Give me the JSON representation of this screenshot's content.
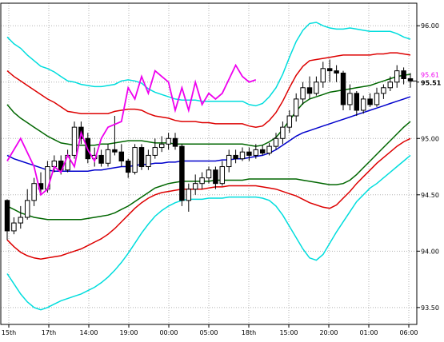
{
  "chart_data": {
    "type": "candlestick",
    "y_axis": {
      "position": "right",
      "range": [
        93.35,
        96.2
      ],
      "ticks": [
        "96.00",
        "95.50",
        "95.00",
        "94.50",
        "94.00",
        "93.50"
      ],
      "grid": true
    },
    "x_axis": {
      "ticks": [
        "15th",
        "17th",
        "14:00",
        "19:00",
        "00:00",
        "05:00",
        "18th",
        "15:00",
        "20:00",
        "01:00",
        "06:00"
      ],
      "grid": true
    },
    "current_price": {
      "label": "95.51",
      "secondary_label": "95.61",
      "value": 95.51
    },
    "candles": [
      [
        94.45,
        94.18,
        94.46,
        94.1
      ],
      [
        94.18,
        94.25,
        94.3,
        94.15
      ],
      [
        94.25,
        94.3,
        94.4,
        94.2
      ],
      [
        94.3,
        94.45,
        94.55,
        94.28
      ],
      [
        94.45,
        94.6,
        94.65,
        94.4
      ],
      [
        94.6,
        94.55,
        94.7,
        94.5
      ],
      [
        94.55,
        94.75,
        94.8,
        94.52
      ],
      [
        94.75,
        94.8,
        94.85,
        94.7
      ],
      [
        94.8,
        94.72,
        94.85,
        94.68
      ],
      [
        94.72,
        94.85,
        94.9,
        94.7
      ],
      [
        94.85,
        95.1,
        95.15,
        94.82
      ],
      [
        95.1,
        95.0,
        95.15,
        94.95
      ],
      [
        95.0,
        94.82,
        95.05,
        94.78
      ],
      [
        94.82,
        94.85,
        94.92,
        94.75
      ],
      [
        94.85,
        94.78,
        94.9,
        94.75
      ],
      [
        94.78,
        94.9,
        94.95,
        94.75
      ],
      [
        94.9,
        94.88,
        95.2,
        94.85
      ],
      [
        94.88,
        94.8,
        94.95,
        94.75
      ],
      [
        94.8,
        94.7,
        94.82,
        94.65
      ],
      [
        94.7,
        94.92,
        94.95,
        94.68
      ],
      [
        94.92,
        94.75,
        94.95,
        94.72
      ],
      [
        94.75,
        94.85,
        94.9,
        94.72
      ],
      [
        94.85,
        94.92,
        95.0,
        94.82
      ],
      [
        94.92,
        94.95,
        95.02,
        94.88
      ],
      [
        94.95,
        95.0,
        95.05,
        94.9
      ],
      [
        95.0,
        94.93,
        95.05,
        94.9
      ],
      [
        94.93,
        94.45,
        94.95,
        94.4
      ],
      [
        94.45,
        94.55,
        94.6,
        94.35
      ],
      [
        94.55,
        94.6,
        94.68,
        94.5
      ],
      [
        94.6,
        94.65,
        94.7,
        94.55
      ],
      [
        94.65,
        94.72,
        94.75,
        94.6
      ],
      [
        94.72,
        94.6,
        94.75,
        94.55
      ],
      [
        94.6,
        94.75,
        94.8,
        94.58
      ],
      [
        94.75,
        94.85,
        94.9,
        94.7
      ],
      [
        94.85,
        94.82,
        94.9,
        94.78
      ],
      [
        94.82,
        94.88,
        94.92,
        94.8
      ],
      [
        94.88,
        94.85,
        94.92,
        94.8
      ],
      [
        94.85,
        94.9,
        94.95,
        94.82
      ],
      [
        94.9,
        94.87,
        94.94,
        94.85
      ],
      [
        94.87,
        94.93,
        94.96,
        94.85
      ],
      [
        94.93,
        95.0,
        95.05,
        94.9
      ],
      [
        95.0,
        95.1,
        95.15,
        94.95
      ],
      [
        95.1,
        95.2,
        95.25,
        95.05
      ],
      [
        95.2,
        95.35,
        95.4,
        95.15
      ],
      [
        95.35,
        95.45,
        95.5,
        95.3
      ],
      [
        95.45,
        95.4,
        95.55,
        95.35
      ],
      [
        95.4,
        95.5,
        95.55,
        95.38
      ],
      [
        95.5,
        95.62,
        95.68,
        95.45
      ],
      [
        95.62,
        95.6,
        95.7,
        95.5
      ],
      [
        95.6,
        95.58,
        95.65,
        95.5
      ],
      [
        95.58,
        95.3,
        95.6,
        95.25
      ],
      [
        95.3,
        95.4,
        95.48,
        95.25
      ],
      [
        95.4,
        95.25,
        95.42,
        95.2
      ],
      [
        95.25,
        95.35,
        95.38,
        95.22
      ],
      [
        95.35,
        95.3,
        95.4,
        95.28
      ],
      [
        95.3,
        95.4,
        95.45,
        95.28
      ],
      [
        95.4,
        95.45,
        95.48,
        95.35
      ],
      [
        95.45,
        95.5,
        95.55,
        95.42
      ],
      [
        95.5,
        95.6,
        95.65,
        95.45
      ],
      [
        95.6,
        95.53,
        95.63,
        95.48
      ],
      [
        95.53,
        95.51,
        95.58,
        95.45
      ]
    ],
    "bands": [
      {
        "name": "",
        "color": "#00dddd",
        "values": [
          95.9,
          95.84,
          95.8,
          95.74,
          95.69,
          95.64,
          95.62,
          95.59,
          95.55,
          95.51,
          95.5,
          95.48,
          95.47,
          95.46,
          95.46,
          95.47,
          95.48,
          95.51,
          95.52,
          95.51,
          95.49,
          95.44,
          95.41,
          95.39,
          95.37,
          95.35,
          95.34,
          95.34,
          95.34,
          95.33,
          95.33,
          95.33,
          95.33,
          95.33,
          95.33,
          95.33,
          95.3,
          95.29,
          95.31,
          95.37,
          95.45,
          95.57,
          95.72,
          95.86,
          95.96,
          96.02,
          96.03,
          96.0,
          95.98,
          95.97,
          95.97,
          95.98,
          95.97,
          95.96,
          95.95,
          95.95,
          95.95,
          95.95,
          95.93,
          95.9,
          95.88
        ]
      },
      {
        "name": "",
        "color": "#dd0000",
        "values": [
          95.6,
          95.55,
          95.51,
          95.47,
          95.43,
          95.39,
          95.35,
          95.32,
          95.28,
          95.24,
          95.23,
          95.22,
          95.22,
          95.22,
          95.22,
          95.22,
          95.24,
          95.25,
          95.26,
          95.26,
          95.25,
          95.22,
          95.2,
          95.19,
          95.18,
          95.16,
          95.15,
          95.15,
          95.15,
          95.14,
          95.14,
          95.13,
          95.13,
          95.13,
          95.13,
          95.13,
          95.11,
          95.1,
          95.11,
          95.16,
          95.23,
          95.33,
          95.45,
          95.56,
          95.64,
          95.69,
          95.7,
          95.71,
          95.72,
          95.73,
          95.74,
          95.74,
          95.74,
          95.74,
          95.74,
          95.75,
          95.75,
          95.76,
          95.76,
          95.75,
          95.74
        ]
      },
      {
        "name": "",
        "color": "#006600",
        "values": [
          95.3,
          95.23,
          95.18,
          95.14,
          95.1,
          95.06,
          95.02,
          94.99,
          94.96,
          94.95,
          94.94,
          94.94,
          94.94,
          94.94,
          94.95,
          94.95,
          94.96,
          94.97,
          94.98,
          94.98,
          94.98,
          94.97,
          94.96,
          94.96,
          94.96,
          94.95,
          94.95,
          94.95,
          94.95,
          94.95,
          94.95,
          94.95,
          94.95,
          94.95,
          94.95,
          94.95,
          94.94,
          94.93,
          94.94,
          94.97,
          95.01,
          95.08,
          95.16,
          95.24,
          95.31,
          95.35,
          95.37,
          95.39,
          95.41,
          95.42,
          95.43,
          95.44,
          95.45,
          95.46,
          95.47,
          95.49,
          95.51,
          95.53,
          95.55,
          95.56,
          95.57
        ]
      },
      {
        "name": "",
        "color": "#0000cc",
        "values": [
          94.85,
          94.82,
          94.8,
          94.78,
          94.76,
          94.74,
          94.72,
          94.71,
          94.71,
          94.71,
          94.71,
          94.71,
          94.71,
          94.72,
          94.72,
          94.73,
          94.74,
          94.75,
          94.75,
          94.76,
          94.77,
          94.77,
          94.78,
          94.78,
          94.79,
          94.79,
          94.8,
          94.8,
          94.8,
          94.8,
          94.8,
          94.8,
          94.81,
          94.81,
          94.82,
          94.82,
          94.83,
          94.84,
          94.85,
          94.87,
          94.9,
          94.94,
          94.98,
          95.02,
          95.05,
          95.07,
          95.09,
          95.11,
          95.13,
          95.15,
          95.17,
          95.19,
          95.21,
          95.23,
          95.25,
          95.27,
          95.29,
          95.31,
          95.33,
          95.35,
          95.37
        ]
      },
      {
        "name": "",
        "color": "#006600",
        "values": [
          94.4,
          94.37,
          94.34,
          94.32,
          94.3,
          94.29,
          94.28,
          94.28,
          94.28,
          94.28,
          94.28,
          94.28,
          94.29,
          94.3,
          94.31,
          94.32,
          94.34,
          94.37,
          94.4,
          94.44,
          94.48,
          94.52,
          94.56,
          94.58,
          94.6,
          94.61,
          94.62,
          94.62,
          94.62,
          94.62,
          94.62,
          94.63,
          94.63,
          94.63,
          94.63,
          94.63,
          94.64,
          94.64,
          94.64,
          94.64,
          94.64,
          94.64,
          94.64,
          94.64,
          94.63,
          94.62,
          94.61,
          94.6,
          94.59,
          94.59,
          94.6,
          94.63,
          94.68,
          94.74,
          94.8,
          94.86,
          94.92,
          94.98,
          95.04,
          95.1,
          95.15
        ]
      },
      {
        "name": "",
        "color": "#dd0000",
        "values": [
          94.1,
          94.04,
          93.99,
          93.96,
          93.94,
          93.93,
          93.94,
          93.95,
          93.96,
          93.98,
          94.0,
          94.02,
          94.05,
          94.08,
          94.11,
          94.15,
          94.2,
          94.26,
          94.32,
          94.38,
          94.43,
          94.47,
          94.5,
          94.52,
          94.53,
          94.54,
          94.55,
          94.55,
          94.55,
          94.55,
          94.56,
          94.57,
          94.57,
          94.58,
          94.58,
          94.58,
          94.58,
          94.58,
          94.57,
          94.56,
          94.55,
          94.53,
          94.51,
          94.49,
          94.46,
          94.43,
          94.41,
          94.39,
          94.38,
          94.41,
          94.47,
          94.53,
          94.6,
          94.66,
          94.72,
          94.78,
          94.83,
          94.88,
          94.93,
          94.97,
          95.0
        ]
      },
      {
        "name": "",
        "color": "#00dddd",
        "values": [
          93.8,
          93.71,
          93.62,
          93.55,
          93.5,
          93.48,
          93.5,
          93.53,
          93.56,
          93.58,
          93.6,
          93.62,
          93.65,
          93.68,
          93.72,
          93.77,
          93.83,
          93.9,
          93.98,
          94.07,
          94.16,
          94.24,
          94.31,
          94.36,
          94.4,
          94.43,
          94.45,
          94.46,
          94.46,
          94.46,
          94.47,
          94.47,
          94.47,
          94.48,
          94.48,
          94.48,
          94.48,
          94.48,
          94.47,
          94.45,
          94.4,
          94.32,
          94.22,
          94.12,
          94.02,
          93.94,
          93.92,
          93.97,
          94.07,
          94.17,
          94.26,
          94.35,
          94.44,
          94.5,
          94.56,
          94.6,
          94.65,
          94.7,
          94.75,
          94.8,
          94.85
        ]
      }
    ],
    "oscillator": {
      "name": "",
      "color": "#ee00ee",
      "points": [
        [
          0,
          94.8
        ],
        [
          2,
          95.0
        ],
        [
          4,
          94.75
        ],
        [
          5,
          94.5
        ],
        [
          6,
          94.55
        ],
        [
          7,
          94.75
        ],
        [
          8,
          94.7
        ],
        [
          9,
          94.85
        ],
        [
          10,
          94.75
        ],
        [
          11,
          95.05
        ],
        [
          12,
          94.9
        ],
        [
          13,
          94.8
        ],
        [
          14,
          95.0
        ],
        [
          15,
          95.1
        ],
        [
          17,
          95.15
        ],
        [
          18,
          95.45
        ],
        [
          19,
          95.35
        ],
        [
          20,
          95.55
        ],
        [
          21,
          95.4
        ],
        [
          22,
          95.6
        ],
        [
          23,
          95.55
        ],
        [
          24,
          95.5
        ],
        [
          25,
          95.25
        ],
        [
          26,
          95.45
        ],
        [
          27,
          95.25
        ],
        [
          28,
          95.5
        ],
        [
          29,
          95.3
        ],
        [
          30,
          95.4
        ],
        [
          31,
          95.35
        ],
        [
          32,
          95.4
        ],
        [
          34,
          95.65
        ],
        [
          35,
          95.55
        ],
        [
          36,
          95.5
        ],
        [
          37,
          95.52
        ]
      ]
    }
  }
}
